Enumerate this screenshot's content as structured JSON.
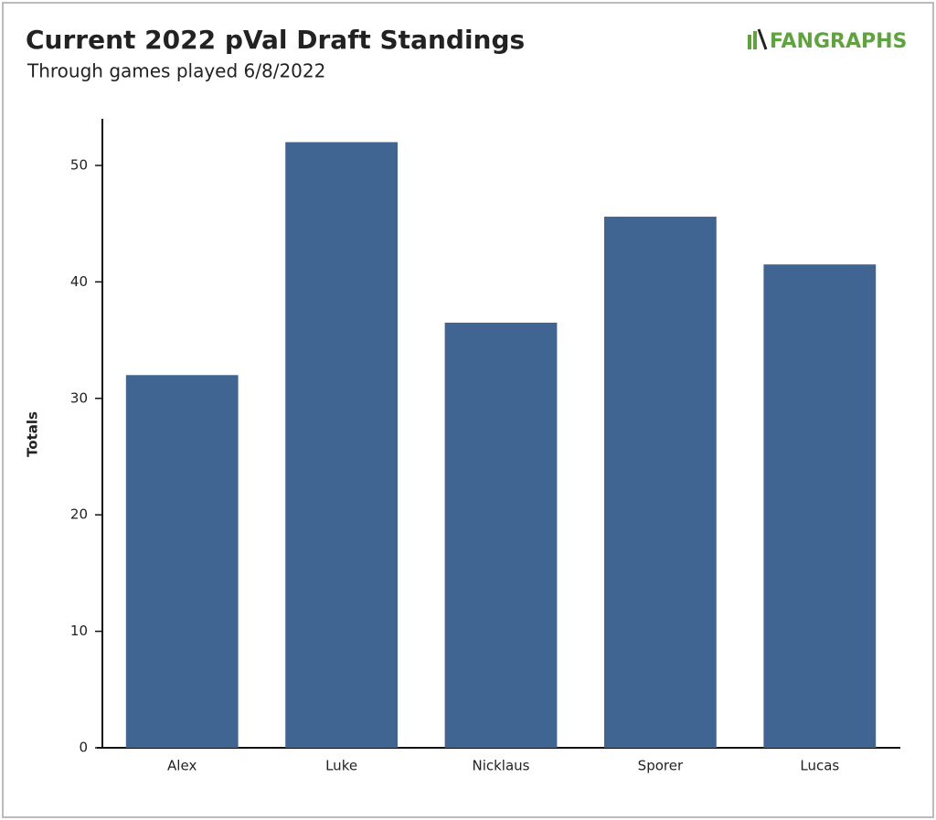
{
  "logo": "FANGRAPHS",
  "chart_data": {
    "type": "bar",
    "title": "Current 2022 pVal Draft Standings",
    "subtitle": "Through games played 6/8/2022",
    "y_label": "Totals",
    "categories": [
      "Alex",
      "Luke",
      "Nicklaus",
      "Sporer",
      "Lucas"
    ],
    "values": [
      32.0,
      52.0,
      36.5,
      45.6,
      41.5
    ],
    "color": "#406593",
    "ylim": [
      0,
      54
    ],
    "yticks": [
      0,
      10,
      20,
      30,
      40,
      50
    ],
    "grid": false
  }
}
